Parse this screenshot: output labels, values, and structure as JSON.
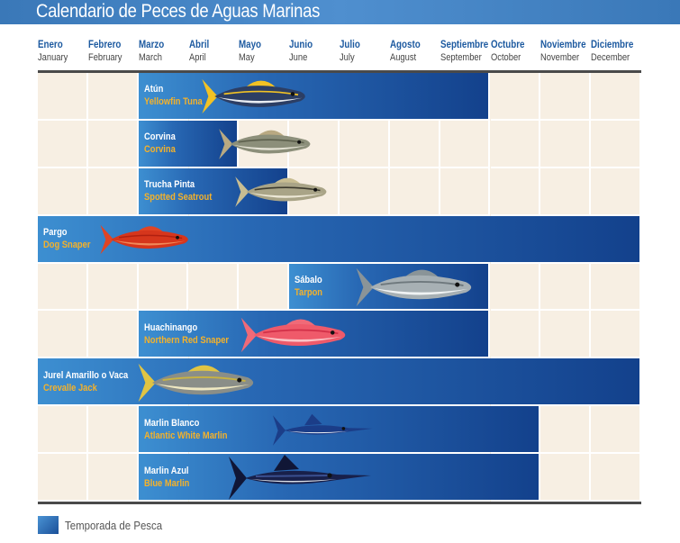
{
  "title": "Calendario de Peces de Aguas Marinas",
  "months": [
    {
      "es": "Enero",
      "en": "January"
    },
    {
      "es": "Febrero",
      "en": "February"
    },
    {
      "es": "Marzo",
      "en": "March"
    },
    {
      "es": "Abril",
      "en": "April"
    },
    {
      "es": "Mayo",
      "en": "May"
    },
    {
      "es": "Junio",
      "en": "June"
    },
    {
      "es": "Julio",
      "en": "July"
    },
    {
      "es": "Agosto",
      "en": "August"
    },
    {
      "es": "Septiembre",
      "en": "September"
    },
    {
      "es": "Octubre",
      "en": "October"
    },
    {
      "es": "Noviembre",
      "en": "November"
    },
    {
      "es": "Diciembre",
      "en": "December"
    }
  ],
  "legend": {
    "label": "Temporada de Pesca"
  },
  "colors": {
    "season_dark": "#13418c",
    "season_light": "#3d8fd1",
    "cell": "#f7efe3",
    "month_es": "#1d5aa0",
    "name_en": "#f5b22a",
    "title_bar": "#4a8ac8"
  },
  "chart_data": {
    "type": "bar",
    "orientation": "horizontal",
    "title": "Calendario de Peces de Aguas Marinas",
    "categories": [
      "January",
      "February",
      "March",
      "April",
      "May",
      "June",
      "July",
      "August",
      "September",
      "October",
      "November",
      "December"
    ],
    "series": [
      {
        "es": "Atún",
        "en": "Yellowfin Tuna",
        "start": 3,
        "end": 9,
        "fish_icon": "tuna-icon"
      },
      {
        "es": "Corvina",
        "en": "Corvina",
        "start": 3,
        "end": 4,
        "fish_icon": "corvina-icon"
      },
      {
        "es": "Trucha Pinta",
        "en": "Spotted Seatrout",
        "start": 3,
        "end": 5,
        "fish_icon": "seatrout-icon"
      },
      {
        "es": "Pargo",
        "en": "Dog Snaper",
        "start": 1,
        "end": 12,
        "fish_icon": "snapper-icon"
      },
      {
        "es": "Sábalo",
        "en": "Tarpon",
        "start": 6,
        "end": 9,
        "fish_icon": "tarpon-icon"
      },
      {
        "es": "Huachinango",
        "en": "Northern Red Snaper",
        "start": 3,
        "end": 9,
        "fish_icon": "red-snapper-icon"
      },
      {
        "es": "Jurel Amarillo o Vaca",
        "en": "Crevalle Jack",
        "start": 1,
        "end": 12,
        "fish_icon": "jack-icon"
      },
      {
        "es": "Marlin Blanco",
        "en": "Atlantic White Marlin",
        "start": 3,
        "end": 10,
        "fish_icon": "white-marlin-icon"
      },
      {
        "es": "Marlin Azul",
        "en": "Blue Marlin",
        "start": 3,
        "end": 10,
        "fish_icon": "blue-marlin-icon"
      }
    ],
    "legend": "bottom-left",
    "grid": true
  }
}
